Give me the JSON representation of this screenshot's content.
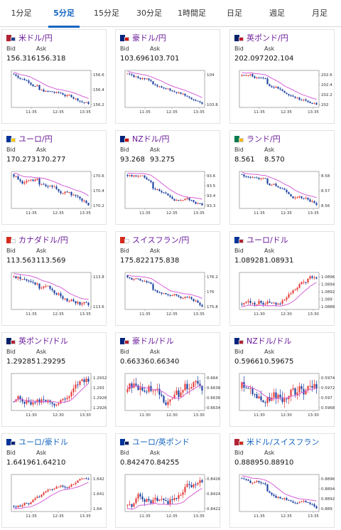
{
  "tabs": [
    "1分足",
    "5分足",
    "15分足",
    "30分足",
    "1時間足",
    "日足",
    "週足",
    "月足"
  ],
  "active_tab": 1,
  "bid_label": "Bid",
  "ask_label": "Ask",
  "x_ticks": [
    "11:35",
    "12:35",
    "13:35"
  ],
  "x_ticks_alt": [
    "11:30",
    "12:30",
    "13:30"
  ],
  "pairs": [
    {
      "name": "米ドル/円",
      "bid": "156.316",
      "ask": "156.318",
      "flag": [
        "#b22234",
        "#1a3c8e"
      ],
      "yticks": [
        "156.6",
        "156.4",
        "156.2"
      ],
      "trend": "down"
    },
    {
      "name": "豪ドル/円",
      "bid": "103.696",
      "ask": "103.701",
      "flag": [
        "#00247d",
        "#cc0000"
      ],
      "yticks": [
        "104",
        "103.8"
      ],
      "trend": "down"
    },
    {
      "name": "英ポンド/円",
      "bid": "202.097",
      "ask": "202.104",
      "flag": [
        "#012169",
        "#c8102e"
      ],
      "yticks": [
        "202.6",
        "202.4",
        "202.2",
        "202"
      ],
      "trend": "down"
    },
    {
      "name": "ユーロ/円",
      "bid": "170.273",
      "ask": "170.277",
      "flag": [
        "#003399",
        "#ffcc00"
      ],
      "yticks": [
        "170.6",
        "170.4",
        "170.2"
      ],
      "trend": "down"
    },
    {
      "name": "NZドル/円",
      "bid": "93.268",
      "ask": "93.275",
      "flag": [
        "#00247d",
        "#cc0000"
      ],
      "yticks": [
        "93.6",
        "93.5",
        "93.4",
        "93.3"
      ],
      "trend": "down"
    },
    {
      "name": "ランド/円",
      "bid": "8.561",
      "ask": "8.570",
      "flag": [
        "#007a4d",
        "#ffb612"
      ],
      "yticks": [
        "8.58",
        "8.57",
        "8.56"
      ],
      "trend": "down"
    },
    {
      "name": "カナダドル/円",
      "bid": "113.563",
      "ask": "113.569",
      "flag": [
        "#d52b1e",
        "#ffffff"
      ],
      "yticks": [
        "113.8",
        "113.6"
      ],
      "trend": "down"
    },
    {
      "name": "スイスフラン/円",
      "bid": "175.822",
      "ask": "175.838",
      "flag": [
        "#d52b1e",
        "#ffffff"
      ],
      "yticks": [
        "176.2",
        "176",
        "175.8"
      ],
      "trend": "down"
    },
    {
      "name": "ユーロ/ドル",
      "bid": "1.08928",
      "ask": "1.08931",
      "flag": [
        "#003399",
        "#b22234"
      ],
      "yticks": [
        "1.0896",
        "1.0894",
        "1.0892",
        "1.089",
        "1.0888"
      ],
      "trend": "up"
    },
    {
      "name": "英ポンド/ドル",
      "bid": "1.29285",
      "ask": "1.29295",
      "flag": [
        "#012169",
        "#b22234"
      ],
      "yticks": [
        "1.2932",
        "1.293",
        "1.2928",
        "1.2926"
      ],
      "trend": "flat"
    },
    {
      "name": "豪ドル/ドル",
      "bid": "0.66336",
      "ask": "0.66340",
      "flag": [
        "#00247d",
        "#b22234"
      ],
      "yticks": [
        "0.664",
        "0.6638",
        "0.6636",
        "0.6634"
      ],
      "trend": "flat"
    },
    {
      "name": "NZドル/ドル",
      "bid": "0.59661",
      "ask": "0.59675",
      "flag": [
        "#00247d",
        "#b22234"
      ],
      "yticks": [
        "0.5974",
        "0.5972",
        "0.597",
        "0.5968"
      ],
      "trend": "flat"
    },
    {
      "name": "ユーロ/豪ドル",
      "bid": "1.64196",
      "ask": "1.64210",
      "flag": [
        "#003399",
        "#00247d"
      ],
      "yticks": [
        "1.642",
        "1.641",
        "1.64"
      ],
      "trend": "up"
    },
    {
      "name": "ユーロ/英ポンド",
      "bid": "0.84247",
      "ask": "0.84255",
      "flag": [
        "#003399",
        "#012169"
      ],
      "yticks": [
        "0.8426",
        "0.8424",
        "0.8422"
      ],
      "trend": "up"
    },
    {
      "name": "米ドル/スイスフラン",
      "bid": "0.88895",
      "ask": "0.88910",
      "flag": [
        "#b22234",
        "#d52b1e"
      ],
      "yticks": [
        "0.8896",
        "0.8894",
        "0.8892",
        "0.889"
      ],
      "trend": "down"
    }
  ]
}
